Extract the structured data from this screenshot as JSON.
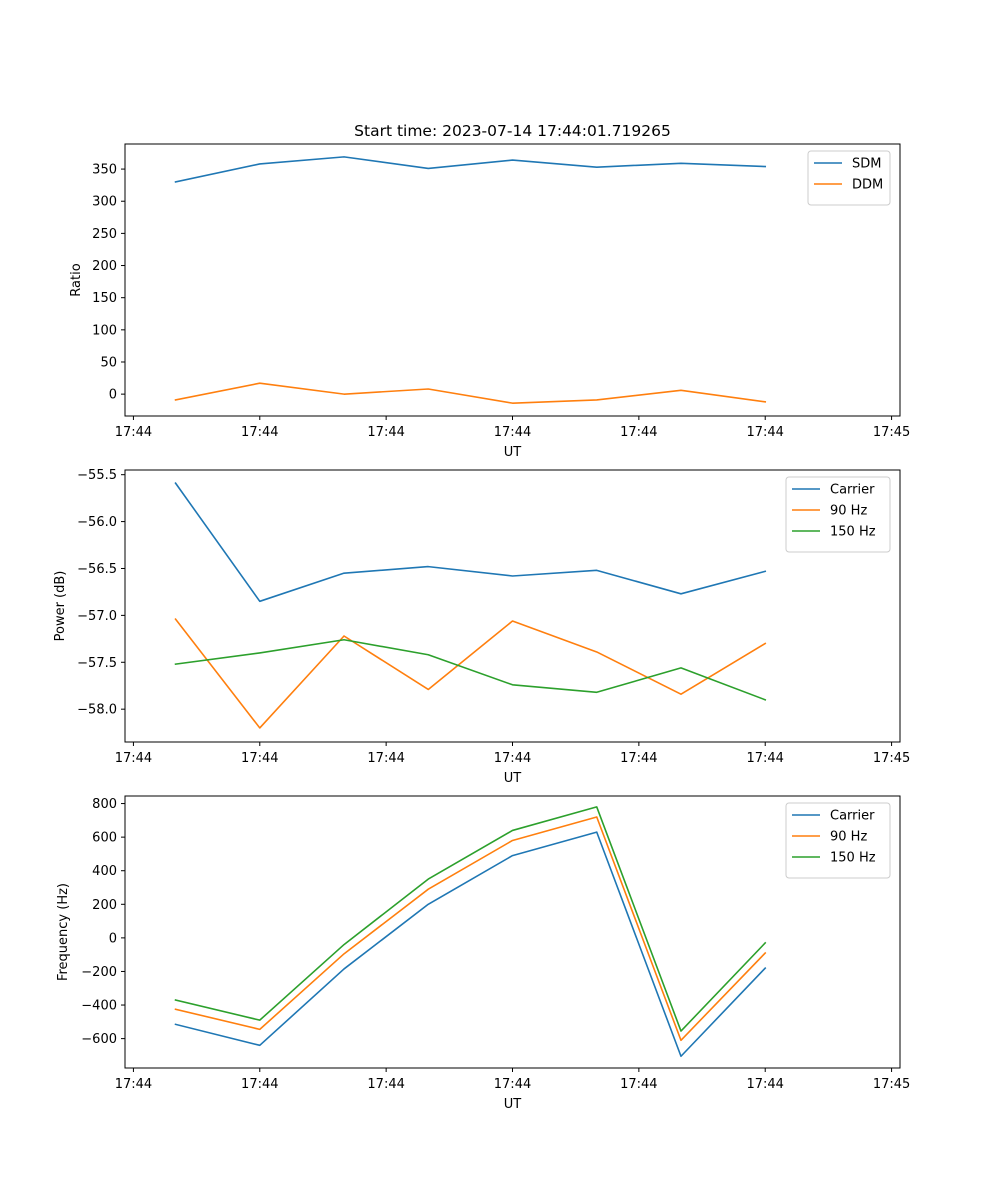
{
  "figure_title": "Start time: 2023-07-14 17:44:01.719265",
  "colors": {
    "blue": "#1f77b4",
    "orange": "#ff7f0e",
    "green": "#2ca02c"
  },
  "chart_data": [
    {
      "type": "line",
      "title": "Start time: 2023-07-14 17:44:01.719265",
      "xlabel": "UT",
      "ylabel": "Ratio",
      "xlim": [
        -0.6,
        8.6
      ],
      "ylim": [
        -34,
        389
      ],
      "x": [
        0,
        1,
        2,
        3,
        4,
        5,
        6,
        7
      ],
      "xticks": [
        -0.5,
        1,
        2.5,
        4,
        5.5,
        7,
        8.5
      ],
      "xtick_labels": [
        "17:44",
        "17:44",
        "17:44",
        "17:44",
        "17:44",
        "17:44",
        "17:45"
      ],
      "yticks": [
        0,
        50,
        100,
        150,
        200,
        250,
        300,
        350
      ],
      "ytick_labels": [
        "0",
        "50",
        "100",
        "150",
        "200",
        "250",
        "300",
        "350"
      ],
      "legend_position": "upper-right",
      "series": [
        {
          "name": "SDM",
          "color": "#1f77b4",
          "values": [
            330,
            358,
            369,
            351,
            364,
            353,
            359,
            354
          ]
        },
        {
          "name": "DDM",
          "color": "#ff7f0e",
          "values": [
            -9,
            17,
            0,
            8,
            -14,
            -9,
            6,
            -12
          ]
        }
      ]
    },
    {
      "type": "line",
      "title": "",
      "xlabel": "UT",
      "ylabel": "Power (dB)",
      "xlim": [
        -0.6,
        8.6
      ],
      "ylim": [
        -58.35,
        -55.45
      ],
      "x": [
        0,
        1,
        2,
        3,
        4,
        5,
        6,
        7
      ],
      "xticks": [
        -0.5,
        1,
        2.5,
        4,
        5.5,
        7,
        8.5
      ],
      "xtick_labels": [
        "17:44",
        "17:44",
        "17:44",
        "17:44",
        "17:44",
        "17:44",
        "17:45"
      ],
      "yticks": [
        -58.0,
        -57.5,
        -57.0,
        -56.5,
        -56.0,
        -55.5
      ],
      "ytick_labels": [
        "−58.0",
        "−57.5",
        "−57.0",
        "−56.5",
        "−56.0",
        "−55.5"
      ],
      "legend_position": "upper-right",
      "series": [
        {
          "name": "Carrier",
          "color": "#1f77b4",
          "values": [
            -55.59,
            -56.85,
            -56.55,
            -56.48,
            -56.58,
            -56.52,
            -56.77,
            -56.53
          ]
        },
        {
          "name": "90 Hz",
          "color": "#ff7f0e",
          "values": [
            -57.04,
            -58.2,
            -57.22,
            -57.79,
            -57.06,
            -57.39,
            -57.84,
            -57.3
          ]
        },
        {
          "name": "150 Hz",
          "color": "#2ca02c",
          "values": [
            -57.52,
            -57.4,
            -57.26,
            -57.42,
            -57.74,
            -57.82,
            -57.56,
            -57.9
          ]
        }
      ]
    },
    {
      "type": "line",
      "title": "",
      "xlabel": "UT",
      "ylabel": "Frequency (Hz)",
      "xlim": [
        -0.6,
        8.6
      ],
      "ylim": [
        -775,
        845
      ],
      "x": [
        0,
        1,
        2,
        3,
        4,
        5,
        6,
        7
      ],
      "xticks": [
        -0.5,
        1,
        2.5,
        4,
        5.5,
        7,
        8.5
      ],
      "xtick_labels": [
        "17:44",
        "17:44",
        "17:44",
        "17:44",
        "17:44",
        "17:44",
        "17:45"
      ],
      "yticks": [
        -600,
        -400,
        -200,
        0,
        200,
        400,
        600,
        800
      ],
      "ytick_labels": [
        "−600",
        "−400",
        "−200",
        "0",
        "200",
        "400",
        "600",
        "800"
      ],
      "legend_position": "upper-right",
      "series": [
        {
          "name": "Carrier",
          "color": "#1f77b4",
          "values": [
            -515,
            -640,
            -185,
            200,
            490,
            630,
            -705,
            -180
          ]
        },
        {
          "name": "90 Hz",
          "color": "#ff7f0e",
          "values": [
            -425,
            -545,
            -95,
            290,
            580,
            720,
            -610,
            -90
          ]
        },
        {
          "name": "150 Hz",
          "color": "#2ca02c",
          "values": [
            -370,
            -490,
            -40,
            350,
            640,
            780,
            -555,
            -30
          ]
        }
      ]
    }
  ]
}
